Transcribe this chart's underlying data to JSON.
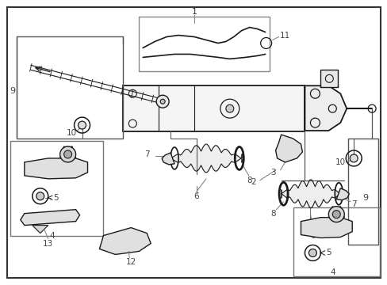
{
  "background_color": "#ffffff",
  "line_color": "#1a1a1a",
  "label_color": "#444444",
  "figsize": [
    4.89,
    3.6
  ],
  "dpi": 100
}
